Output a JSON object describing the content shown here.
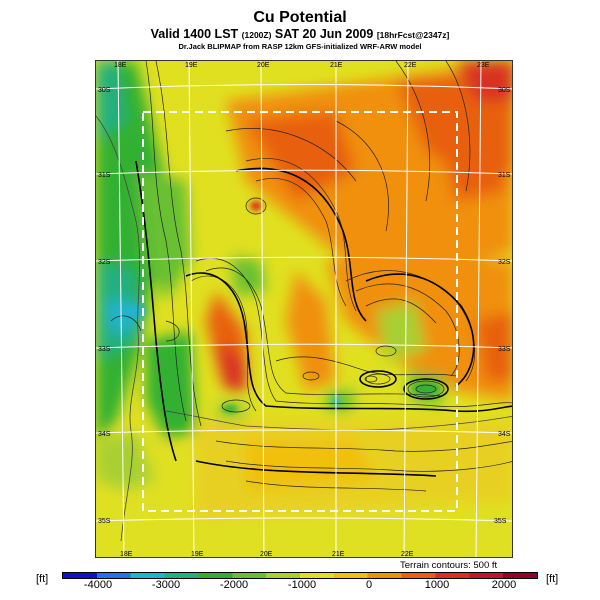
{
  "header": {
    "title": "Cu Potential",
    "subtitle_main": "Valid 1400 LST",
    "subtitle_small1": "(1200Z)",
    "subtitle_date": "SAT 20 Jun 2009",
    "subtitle_small2": "[18hrFcst@2347z]",
    "credit": "Dr.Jack BLIPMAP from RASP 12km GFS-initialized WRF-ARW model"
  },
  "map": {
    "lon_labels_top": [
      "18E",
      "19E",
      "20E",
      "21E",
      "22E",
      "23E"
    ],
    "lon_labels_bottom": [
      "18E",
      "19E",
      "20E",
      "21E",
      "22E"
    ],
    "lat_labels_left": [
      "30S",
      "31S",
      "32S",
      "33S",
      "34S",
      "35S"
    ],
    "lat_labels_right": [
      "30S",
      "31S",
      "32S",
      "33S",
      "34S",
      "35S"
    ],
    "terrain_note": "Terrain contours: 500 ft"
  },
  "legend": {
    "unit_left": "[ft]",
    "unit_right": "[ft]",
    "ticks": [
      "-4000",
      "-3000",
      "-2000",
      "-1000",
      "0",
      "1000",
      "2000"
    ],
    "colors": [
      "#1010cc",
      "#1a78e6",
      "#20b4d0",
      "#22b080",
      "#30b030",
      "#68c030",
      "#a8d030",
      "#e0e020",
      "#f0c010",
      "#f09010",
      "#e86010",
      "#d83020",
      "#b81830",
      "#900028"
    ]
  }
}
